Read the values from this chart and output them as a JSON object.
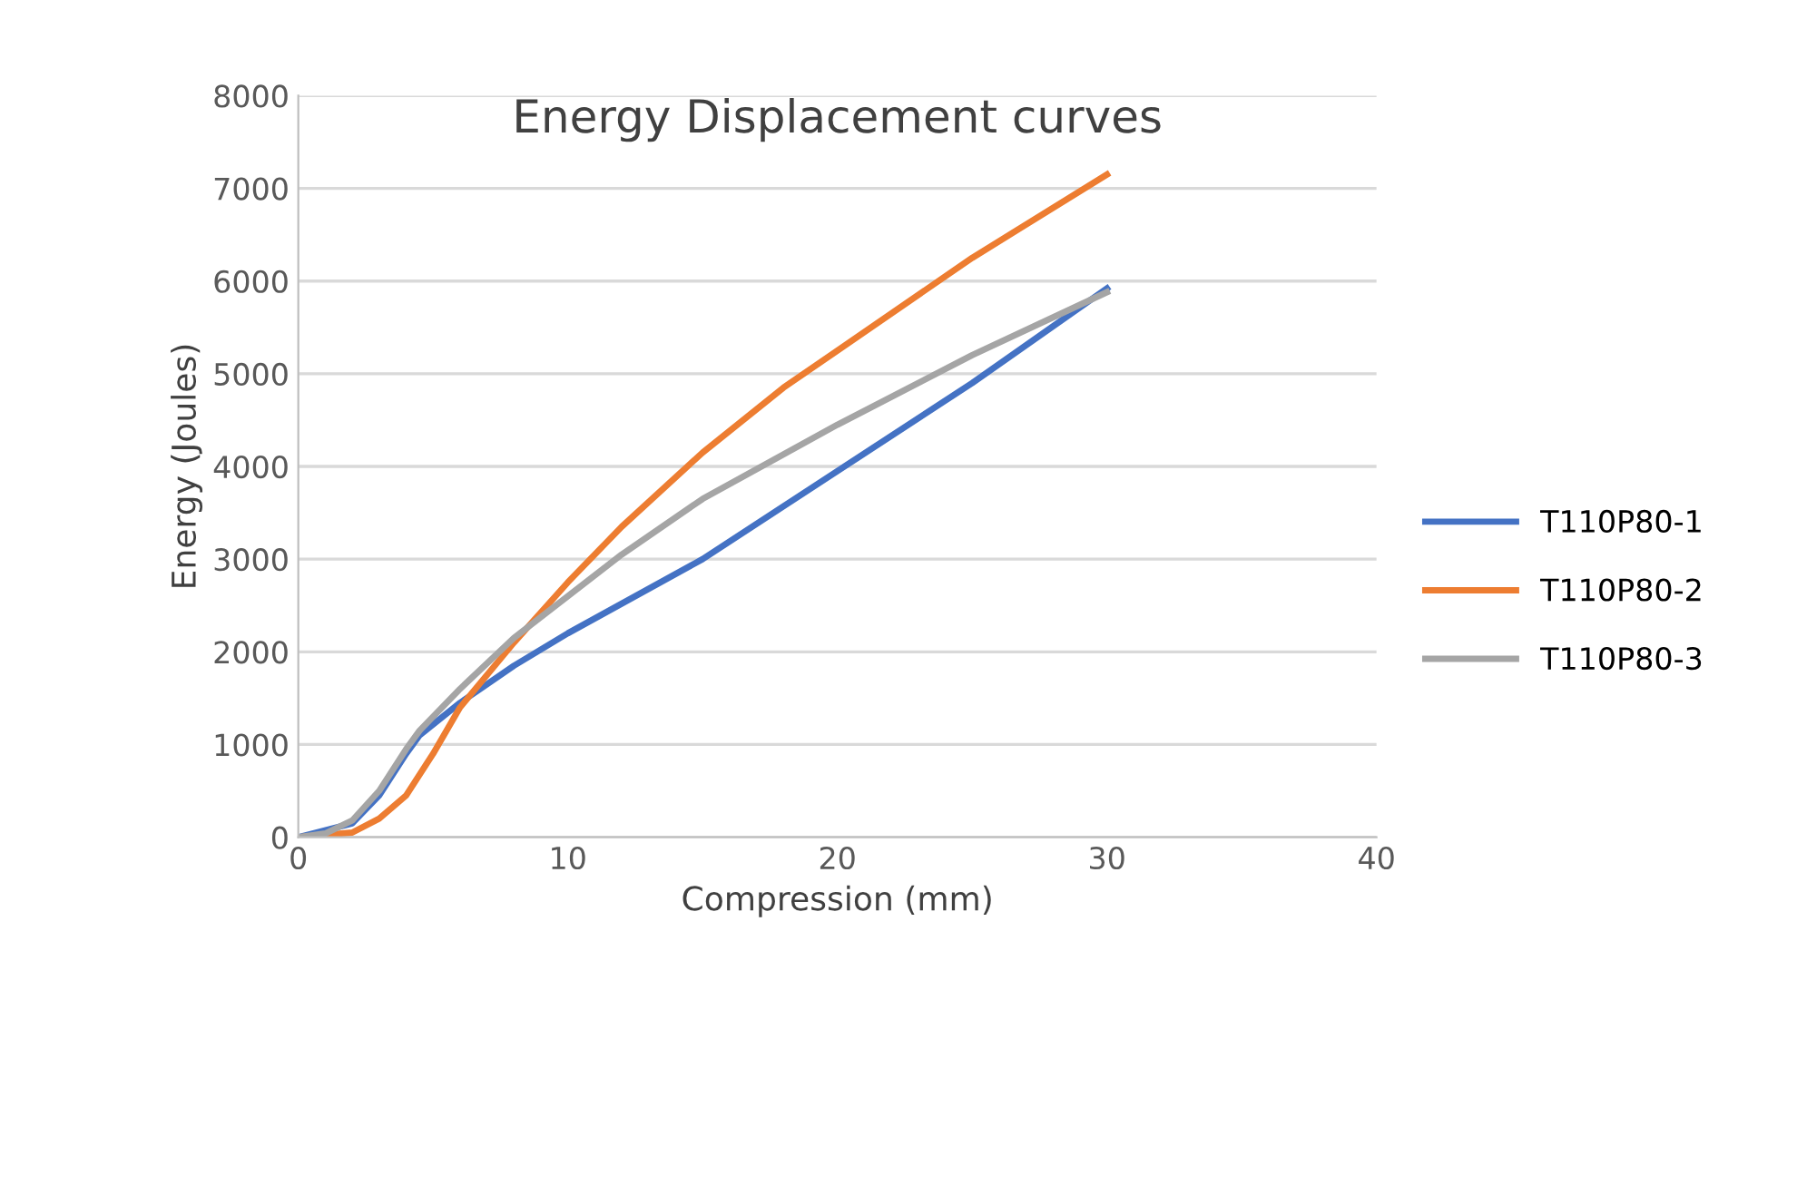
{
  "chart_data": {
    "type": "line",
    "title": "Energy Displacement curves",
    "xlabel": "Compression (mm)",
    "ylabel": "Energy (Joules)",
    "xlim": [
      0,
      40
    ],
    "xticks": [
      0,
      10,
      20,
      30,
      40
    ],
    "ylim": [
      0,
      8000
    ],
    "yticks": [
      0,
      1000,
      2000,
      3000,
      4000,
      5000,
      6000,
      7000,
      8000
    ],
    "grid": "y",
    "legend": "right",
    "marker": "none",
    "line_style": "solid",
    "series": [
      {
        "name": "T110P80-1",
        "color": "#4472c4",
        "x": [
          0,
          2,
          3,
          4,
          4.5,
          6,
          8,
          10,
          15,
          20,
          25,
          30
        ],
        "values": [
          0,
          150,
          450,
          900,
          1100,
          1450,
          1850,
          2200,
          3000,
          3950,
          4900,
          5920
        ]
      },
      {
        "name": "T110P80-2",
        "color": "#ed7d31",
        "x": [
          0,
          2,
          3,
          4,
          5,
          6,
          8,
          10,
          12,
          15,
          18,
          20,
          25,
          30
        ],
        "values": [
          0,
          50,
          200,
          450,
          900,
          1400,
          2100,
          2750,
          3350,
          4150,
          4850,
          5250,
          6250,
          7150
        ]
      },
      {
        "name": "T110P80-3",
        "color": "#a5a5a5",
        "x": [
          0,
          1,
          2,
          3,
          4,
          4.5,
          6,
          8,
          10,
          12,
          15,
          20,
          25,
          30
        ],
        "values": [
          0,
          40,
          180,
          500,
          950,
          1150,
          1600,
          2150,
          2600,
          3050,
          3650,
          4450,
          5200,
          5880
        ]
      }
    ]
  }
}
